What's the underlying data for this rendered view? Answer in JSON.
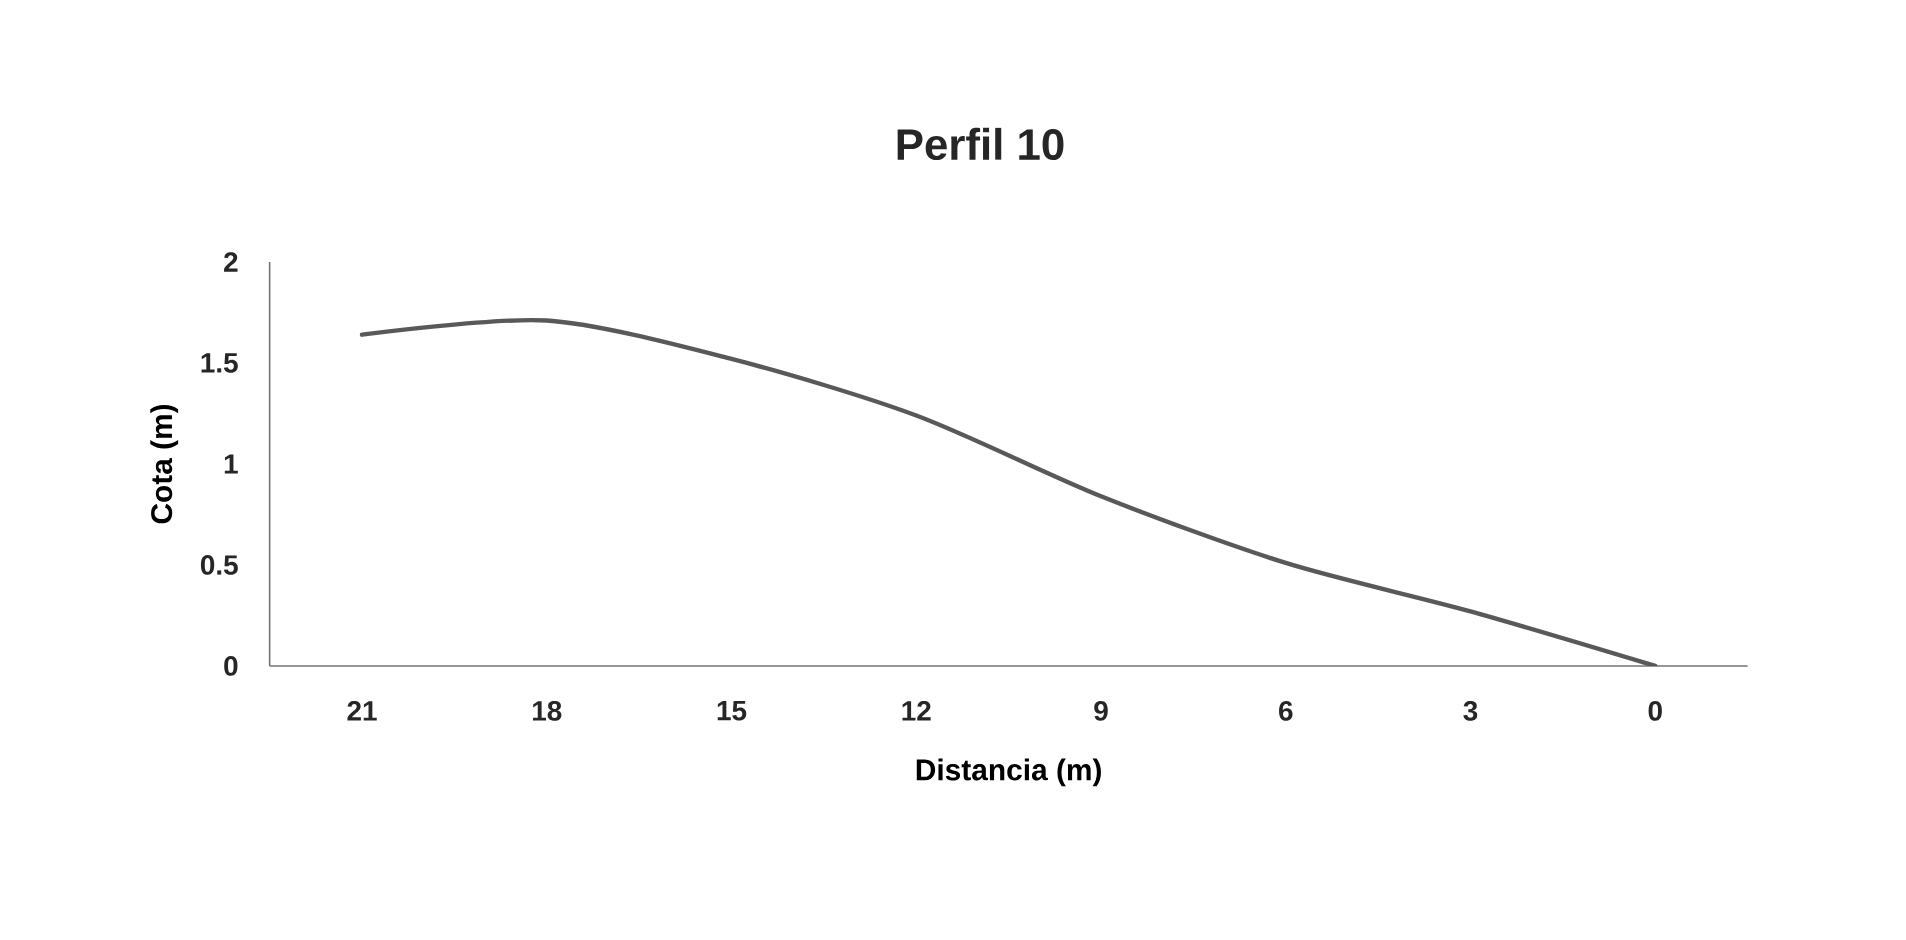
{
  "chart_data": {
    "type": "line",
    "title": "Perfil 10",
    "xlabel": "Distancia (m)",
    "ylabel": "Cota (m)",
    "categories": [
      "21",
      "18",
      "15",
      "12",
      "9",
      "6",
      "3",
      "0"
    ],
    "series": [
      {
        "color": "#595959",
        "values": [
          1.64,
          1.71,
          1.52,
          1.24,
          0.84,
          0.51,
          0.27,
          0
        ]
      }
    ],
    "ylim": [
      0,
      2
    ],
    "yticks": [
      0,
      0.5,
      1,
      1.5,
      2
    ],
    "grid": false,
    "marker": "none",
    "line_style": "solid"
  }
}
